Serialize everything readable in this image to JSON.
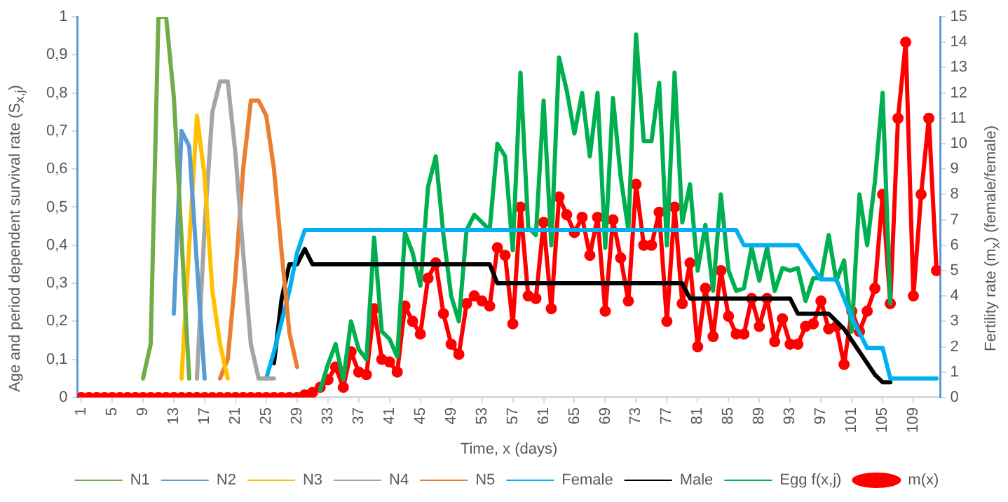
{
  "chart_data": {
    "type": "line",
    "xlabel": "Time, x (days)",
    "ylabel": "Age and period dependent survival rate (S$_{x,j}$)",
    "y2label": "Fertility rate (m$_{x}$) (female/female)",
    "xlim": [
      0.5,
      112.5
    ],
    "xticks": [
      1,
      5,
      9,
      13,
      17,
      21,
      25,
      29,
      33,
      37,
      41,
      45,
      49,
      53,
      57,
      61,
      65,
      69,
      73,
      77,
      81,
      85,
      89,
      93,
      97,
      101,
      105,
      109
    ],
    "ylim": [
      0,
      1
    ],
    "yticks": [
      0,
      {
        "value": 0.1,
        "label": "0,1"
      },
      {
        "value": 0.2,
        "label": "0,2"
      },
      {
        "value": 0.3,
        "label": "0,3"
      },
      {
        "value": 0.4,
        "label": "0,4"
      },
      {
        "value": 0.5,
        "label": "0,5"
      },
      {
        "value": 0.6,
        "label": "0,6"
      },
      {
        "value": 0.7,
        "label": "0,7"
      },
      {
        "value": 0.8,
        "label": "0,8"
      },
      {
        "value": 0.9,
        "label": "0,9"
      },
      1
    ],
    "y2lim": [
      0,
      15
    ],
    "y2ticks": [
      0,
      1,
      2,
      3,
      4,
      5,
      6,
      7,
      8,
      9,
      10,
      11,
      12,
      13,
      14,
      15
    ],
    "grid": false,
    "legend": "bottom",
    "marker": "none",
    "series": [
      {
        "name": "N1",
        "color": "#70ad47",
        "x": [
          9,
          10,
          11,
          12,
          13,
          14,
          15
        ],
        "values": [
          0.05,
          0.14,
          1,
          1,
          0.79,
          0.42,
          0.05
        ]
      },
      {
        "name": "N2",
        "color": "#5b9bd5",
        "x": [
          13,
          14,
          15,
          16,
          17
        ],
        "values": [
          0.22,
          0.7,
          0.66,
          0.35,
          0.05
        ]
      },
      {
        "name": "N3",
        "color": "#ffc000",
        "x": [
          14,
          15,
          16,
          17,
          18,
          19,
          20
        ],
        "values": [
          0.05,
          0.4,
          0.74,
          0.58,
          0.28,
          0.14,
          0.05
        ]
      },
      {
        "name": "N4",
        "color": "#a5a5a5",
        "x": [
          16,
          17,
          18,
          19,
          20,
          21,
          22,
          23,
          24,
          25,
          26
        ],
        "values": [
          0.05,
          0.45,
          0.75,
          0.83,
          0.83,
          0.64,
          0.38,
          0.14,
          0.05,
          0.05,
          0.05
        ]
      },
      {
        "name": "N5",
        "color": "#ed7d31",
        "x": [
          19,
          20,
          21,
          22,
          23,
          24,
          25,
          26,
          27,
          28,
          29
        ],
        "values": [
          0.05,
          0.1,
          0.32,
          0.6,
          0.78,
          0.78,
          0.74,
          0.6,
          0.38,
          0.17,
          0.08
        ]
      },
      {
        "name": "Female",
        "color": "#00b0f0",
        "x": [
          25,
          26,
          27,
          28,
          29,
          30,
          86,
          87,
          94,
          95,
          96,
          97,
          99,
          100,
          101,
          102,
          103,
          105,
          106,
          112
        ],
        "values": [
          0.05,
          0.12,
          0.2,
          0.28,
          0.38,
          0.44,
          0.44,
          0.4,
          0.4,
          0.37,
          0.34,
          0.31,
          0.31,
          0.26,
          0.21,
          0.17,
          0.13,
          0.13,
          0.05,
          0.05
        ]
      },
      {
        "name": "Male",
        "color": "#000000",
        "x": [
          26,
          27,
          28,
          29,
          30,
          31,
          54,
          55,
          79,
          80,
          93,
          94,
          98,
          99,
          100,
          101,
          102,
          103,
          104,
          105,
          106
        ],
        "values": [
          0.09,
          0.26,
          0.35,
          0.35,
          0.39,
          0.35,
          0.35,
          0.3,
          0.3,
          0.26,
          0.26,
          0.22,
          0.22,
          0.2,
          0.18,
          0.15,
          0.12,
          0.09,
          0.06,
          0.04,
          0.04
        ]
      },
      {
        "name": "Egg f(x,j)",
        "color": "#00b050",
        "axis": "y2",
        "x": [
          32,
          33,
          34,
          35,
          36,
          37,
          38,
          39,
          40,
          41,
          42,
          43,
          44,
          45,
          46,
          47,
          48,
          49,
          50,
          51,
          52,
          53,
          54,
          55,
          56,
          57,
          58,
          59,
          60,
          61,
          62,
          63,
          64,
          65,
          66,
          67,
          68,
          69,
          70,
          71,
          72,
          73,
          74,
          75,
          76,
          77,
          78,
          79,
          80,
          81,
          82,
          83,
          84,
          85,
          86,
          87,
          88,
          89,
          90,
          91,
          92,
          93,
          94,
          95,
          96,
          97,
          98,
          99,
          100,
          101,
          102,
          103,
          104,
          105,
          106
        ],
        "values": [
          0.3,
          1.3,
          2.1,
          0.7,
          3.0,
          1.9,
          1.5,
          6.3,
          2.6,
          2.3,
          1.6,
          6.5,
          5.7,
          4.4,
          8.3,
          9.5,
          6.4,
          4.0,
          3.0,
          6.6,
          7.2,
          6.9,
          6.6,
          10.0,
          9.5,
          5.8,
          12.8,
          6.7,
          6.4,
          11.7,
          6.0,
          13.4,
          12.1,
          10.4,
          12.0,
          9.5,
          12.0,
          5.9,
          11.8,
          8.7,
          6.6,
          14.3,
          10.1,
          10.1,
          12.4,
          6.0,
          12.8,
          6.9,
          8.4,
          5.0,
          6.8,
          4.2,
          8.0,
          5.0,
          4.2,
          4.3,
          5.9,
          4.6,
          5.9,
          4.2,
          5.1,
          5.0,
          5.1,
          3.8,
          4.7,
          4.7,
          6.4,
          4.6,
          5.4,
          2.6,
          8.0,
          6.0,
          8.5,
          12.0,
          3.7
        ]
      },
      {
        "name": "m(x)",
        "color": "#ff0000",
        "axis": "y2",
        "marker": "circle",
        "x": [
          1,
          2,
          3,
          4,
          5,
          6,
          7,
          8,
          9,
          10,
          11,
          12,
          13,
          14,
          15,
          16,
          17,
          18,
          19,
          20,
          21,
          22,
          23,
          24,
          25,
          26,
          27,
          28,
          29,
          30,
          31,
          32,
          33,
          34,
          35,
          36,
          37,
          38,
          39,
          40,
          41,
          42,
          43,
          44,
          45,
          46,
          47,
          48,
          49,
          50,
          51,
          52,
          53,
          54,
          55,
          56,
          57,
          58,
          59,
          60,
          61,
          62,
          63,
          64,
          65,
          66,
          67,
          68,
          69,
          70,
          71,
          72,
          73,
          74,
          75,
          76,
          77,
          78,
          79,
          80,
          81,
          82,
          83,
          84,
          85,
          86,
          87,
          88,
          89,
          90,
          91,
          92,
          93,
          94,
          95,
          96,
          97,
          98,
          99,
          100,
          101,
          102,
          103,
          104,
          105,
          106,
          107,
          108,
          109,
          110,
          111,
          112
        ],
        "values": [
          0,
          0,
          0,
          0,
          0,
          0,
          0,
          0,
          0,
          0,
          0,
          0,
          0,
          0,
          0,
          0,
          0,
          0,
          0,
          0,
          0,
          0,
          0,
          0,
          0,
          0,
          0,
          0,
          0,
          0.1,
          0.2,
          0.4,
          0.7,
          1.2,
          0.4,
          1.8,
          1.0,
          0.9,
          3.5,
          1.5,
          1.4,
          1.0,
          3.6,
          3.0,
          2.5,
          4.7,
          5.3,
          3.3,
          2.1,
          1.7,
          3.7,
          4.0,
          3.8,
          3.6,
          5.9,
          5.6,
          2.9,
          7.5,
          4.0,
          3.9,
          6.9,
          3.5,
          7.9,
          7.2,
          6.5,
          7.1,
          5.6,
          7.1,
          3.4,
          7.0,
          5.5,
          3.8,
          8.4,
          6.0,
          6.0,
          7.3,
          3.0,
          7.5,
          3.7,
          5.3,
          2.0,
          4.3,
          2.4,
          5.0,
          3.2,
          2.5,
          2.5,
          3.9,
          2.8,
          3.9,
          2.2,
          3.1,
          2.1,
          2.1,
          2.8,
          2.9,
          3.8,
          2.7,
          2.8,
          1.3,
          3.4,
          2.6,
          3.4,
          4.3,
          8.0,
          3.7,
          11.0,
          14.0,
          4.0,
          8.0,
          11.0,
          5.0
        ]
      }
    ]
  }
}
